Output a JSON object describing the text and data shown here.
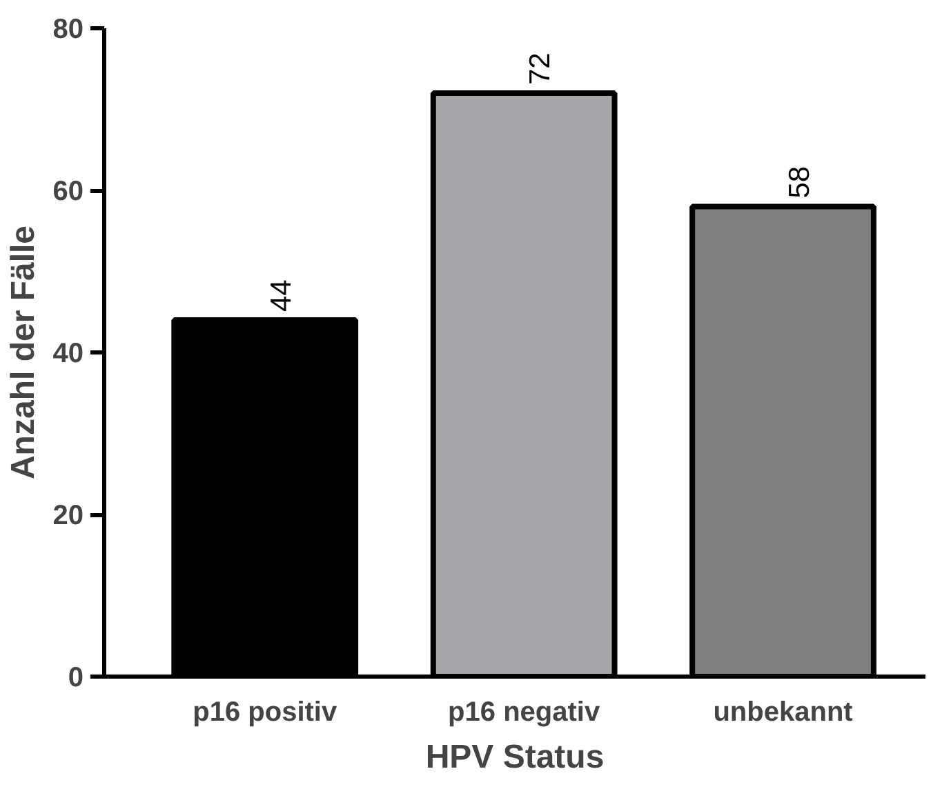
{
  "chart_data": {
    "type": "bar",
    "xlabel": "HPV Status",
    "ylabel": "Anzahl der Fälle",
    "categories": [
      "p16 positiv",
      "p16 negativ",
      "unbekannt"
    ],
    "values": [
      44,
      72,
      58
    ],
    "colors": [
      "#000000",
      "#a7a6ab",
      "#808080"
    ],
    "ylim": [
      0,
      80
    ],
    "yticks": [
      0,
      20,
      40,
      60,
      80
    ],
    "grid": false,
    "data_labels": true
  }
}
